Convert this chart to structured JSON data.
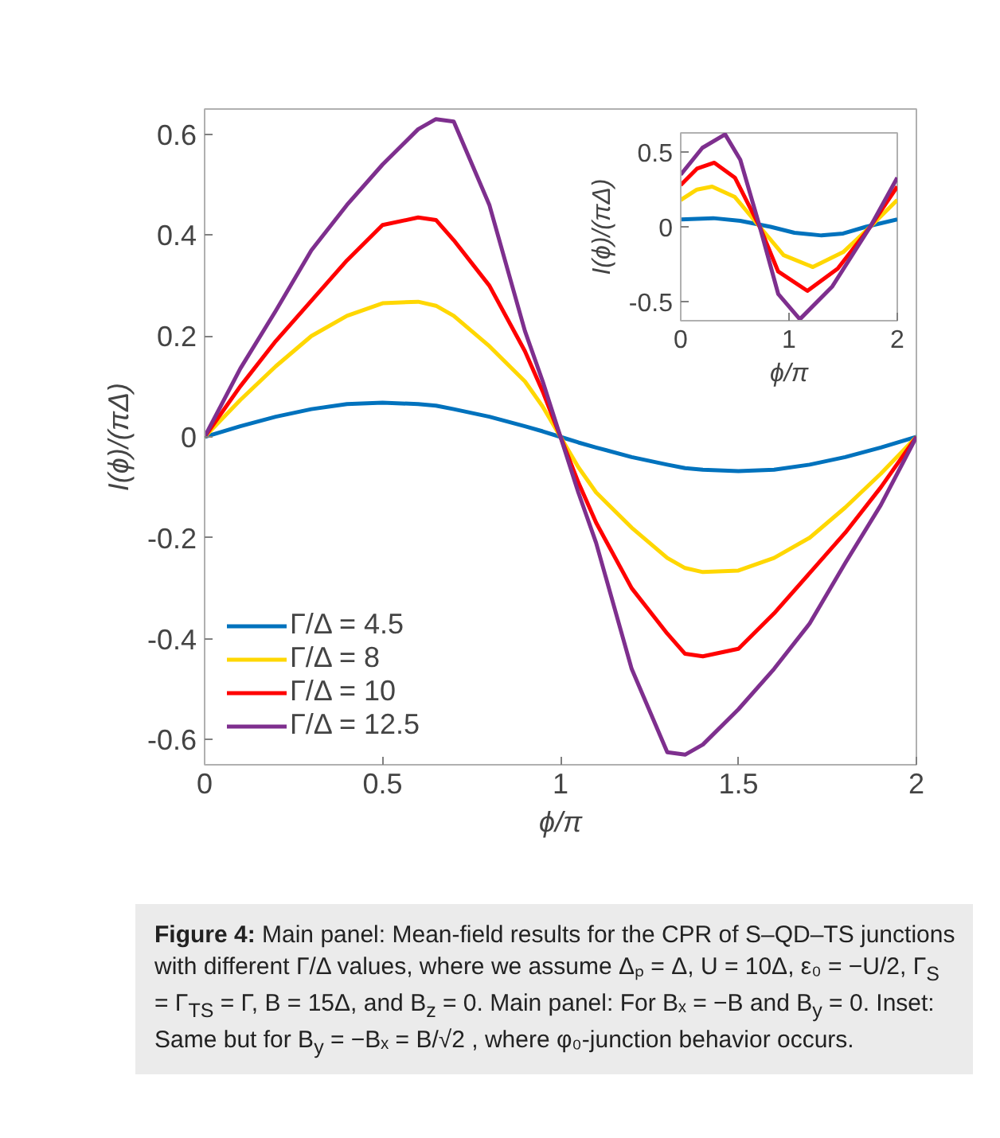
{
  "chart_data": [
    {
      "type": "line",
      "xlabel": "ϕ/π",
      "ylabel": "I(ϕ)/(πΔ)",
      "x": [
        0,
        0.1,
        0.2,
        0.3,
        0.4,
        0.5,
        0.6,
        0.65,
        0.7,
        0.8,
        0.9,
        0.95,
        1,
        1.05,
        1.1,
        1.2,
        1.3,
        1.35,
        1.4,
        1.5,
        1.6,
        1.7,
        1.8,
        1.9,
        2
      ],
      "series": [
        {
          "name": "Γ/Δ = 4.5",
          "color": "#0072bd",
          "values": [
            0,
            0.021,
            0.04,
            0.055,
            0.065,
            0.068,
            0.065,
            0.062,
            0.055,
            0.04,
            0.021,
            0.011,
            0,
            -0.011,
            -0.021,
            -0.04,
            -0.055,
            -0.062,
            -0.065,
            -0.068,
            -0.065,
            -0.055,
            -0.04,
            -0.021,
            0
          ]
        },
        {
          "name": "Γ/Δ = 8",
          "color": "#ffd700",
          "values": [
            0,
            0.073,
            0.14,
            0.2,
            0.24,
            0.265,
            0.268,
            0.26,
            0.24,
            0.18,
            0.11,
            0.06,
            0,
            -0.06,
            -0.11,
            -0.18,
            -0.24,
            -0.26,
            -0.268,
            -0.265,
            -0.24,
            -0.2,
            -0.14,
            -0.073,
            0
          ]
        },
        {
          "name": "Γ/Δ = 10",
          "color": "#ff0000",
          "values": [
            0,
            0.1,
            0.19,
            0.27,
            0.35,
            0.42,
            0.435,
            0.43,
            0.39,
            0.3,
            0.17,
            0.09,
            0,
            -0.09,
            -0.17,
            -0.3,
            -0.39,
            -0.43,
            -0.435,
            -0.42,
            -0.35,
            -0.27,
            -0.19,
            -0.1,
            0
          ]
        },
        {
          "name": "Γ/Δ = 12.5",
          "color": "#7e2f8e",
          "values": [
            0,
            0.135,
            0.25,
            0.37,
            0.46,
            0.54,
            0.61,
            0.63,
            0.625,
            0.46,
            0.21,
            0.11,
            0,
            -0.11,
            -0.21,
            -0.46,
            -0.625,
            -0.63,
            -0.61,
            -0.54,
            -0.46,
            -0.37,
            -0.25,
            -0.135,
            0
          ]
        }
      ],
      "xlim": [
        0,
        2
      ],
      "xticks": [
        0,
        0.5,
        1,
        1.5,
        2
      ],
      "ylim": [
        -0.65,
        0.65
      ],
      "yticks": [
        -0.6,
        -0.4,
        -0.2,
        0,
        0.2,
        0.4,
        0.6
      ],
      "grid": false,
      "legend": "bottom left",
      "line_style": "solid",
      "marker": "none",
      "annotations": [
        "Figure 4: Main panel: Mean-field results for the CPR of S–QD–TS junctions with different Γ/Δ values, where we assume Δₚ = Δ, U = 10Δ, ε₀ = −U/2, Γ$_{S}$ = Γ$_{TS}$ = Γ, B = 15Δ, and B$_{z}$ = 0. Main panel: For Bₓ = −B and B$_{y}$ = 0. Inset: Same but for B$_{y}$ = −Bₓ = B/√2 , where φ₀-junction behavior occurs."
      ]
    },
    {
      "type": "line",
      "xlabel": "ϕ/π",
      "ylabel": "I(ϕ)/(πΔ)",
      "series": [
        {
          "color": "#0072bd",
          "x": [
            0,
            0.3,
            0.55,
            0.83,
            1.05,
            1.3,
            1.5,
            1.71,
            2
          ],
          "values": [
            0.05,
            0.058,
            0.04,
            0,
            -0.04,
            -0.058,
            -0.045,
            0,
            0.05
          ]
        },
        {
          "color": "#ffd700",
          "x": [
            0,
            0.15,
            0.29,
            0.5,
            0.73,
            0.95,
            1.22,
            1.5,
            1.75,
            2
          ],
          "values": [
            0.18,
            0.25,
            0.27,
            0.2,
            0,
            -0.19,
            -0.27,
            -0.17,
            0,
            0.18
          ]
        },
        {
          "color": "#ff0000",
          "x": [
            0,
            0.15,
            0.31,
            0.5,
            0.73,
            0.9,
            1.17,
            1.45,
            1.75,
            2
          ],
          "values": [
            0.28,
            0.39,
            0.43,
            0.33,
            0,
            -0.3,
            -0.43,
            -0.28,
            0,
            0.27
          ]
        },
        {
          "color": "#7e2f8e",
          "x": [
            0,
            0.2,
            0.41,
            0.55,
            0.73,
            0.9,
            1.1,
            1.4,
            1.75,
            2
          ],
          "values": [
            0.35,
            0.53,
            0.62,
            0.45,
            0,
            -0.45,
            -0.62,
            -0.4,
            0,
            0.33
          ]
        }
      ],
      "xlim": [
        0,
        2
      ],
      "xticks": [
        0,
        1,
        2
      ],
      "ylim": [
        -0.63,
        0.63
      ],
      "yticks": [
        -0.5,
        0,
        0.5
      ],
      "grid": false,
      "line_style": "solid",
      "marker": "none"
    }
  ]
}
